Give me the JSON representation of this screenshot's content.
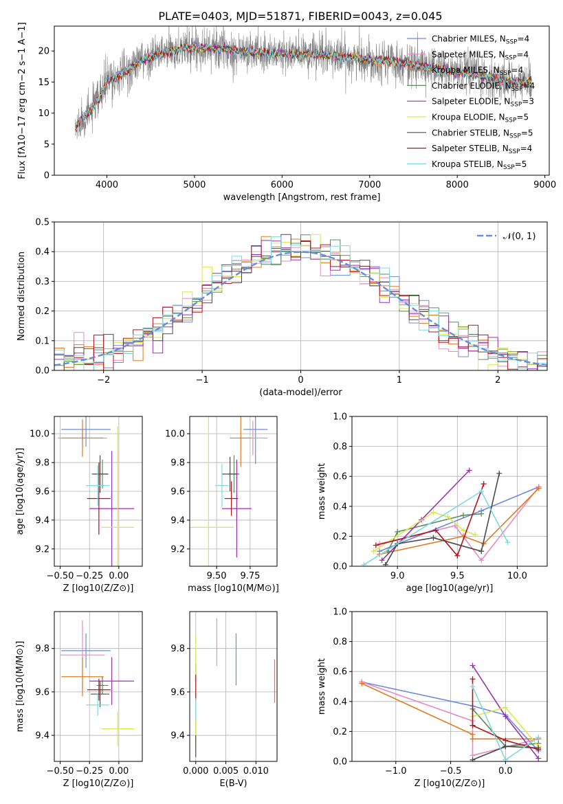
{
  "figure_title": "PLATE=0403, MJD=51871, FIBERID=0043, z=0.045",
  "colors": [
    "#6a8bdc",
    "#e78ac3",
    "#e07a1f",
    "#5b8a5b",
    "#9b2fae",
    "#d9e84a",
    "#4a4a4a",
    "#b3121b",
    "#7fd8de"
  ],
  "chart_data": [
    {
      "id": "spectrum",
      "type": "line",
      "xlabel": "wavelength [Angstrom, rest frame]",
      "ylabel_html": "Flux [f_λ 10^-17 erg cm^-2 s^-1 A^-1]",
      "ylabel": "Flux [fλ10−17 erg cm−2 s−1 A−1]",
      "xlim": [
        3400,
        9050
      ],
      "ylim": [
        0,
        24
      ],
      "xticks": [
        4000,
        5000,
        6000,
        7000,
        8000,
        9000
      ],
      "yticks": [
        0,
        5,
        10,
        15,
        20
      ],
      "grid": false,
      "legend_position": "upper-right",
      "legend": [
        {
          "label": "Chabrier MILES, N",
          "sub": "SSP",
          "suffix": "=4"
        },
        {
          "label": "Salpeter MILES, N",
          "sub": "SSP",
          "suffix": "=4"
        },
        {
          "label": "Kroupa MILES, N",
          "sub": "SSP",
          "suffix": "=4"
        },
        {
          "label": "Chabrier ELODIE, N",
          "sub": "SSP",
          "suffix": "=4"
        },
        {
          "label": "Salpeter ELODIE, N",
          "sub": "SSP",
          "suffix": "=3"
        },
        {
          "label": "Kroupa ELODIE, N",
          "sub": "SSP",
          "suffix": "=5"
        },
        {
          "label": "Chabrier STELIB, N",
          "sub": "SSP",
          "suffix": "=5"
        },
        {
          "label": "Salpeter STELIB, N",
          "sub": "SSP",
          "suffix": "=4"
        },
        {
          "label": "Kroupa STELIB, N",
          "sub": "SSP",
          "suffix": "=5"
        }
      ],
      "continuum": {
        "x": [
          3650,
          3700,
          3800,
          3900,
          4000,
          4100,
          4200,
          4300,
          4400,
          4500,
          4600,
          4700,
          4800,
          4900,
          5000,
          5100,
          5200,
          5300,
          5400,
          5500,
          5600,
          5700,
          5800,
          5900,
          6000,
          6100,
          6200,
          6300,
          6400,
          6500,
          6600,
          6700,
          6800,
          6900,
          7000,
          7100,
          7200,
          7300,
          7400,
          7500,
          7600,
          7700,
          7800,
          7900,
          8000,
          8100,
          8200,
          8300,
          8400,
          8500,
          8600,
          8700,
          8800
        ],
        "y": [
          7.5,
          9.0,
          10.0,
          12.0,
          15.0,
          15.8,
          16.5,
          17.5,
          18.5,
          19.0,
          19.5,
          19.8,
          20.2,
          20.5,
          20.6,
          20.5,
          20.5,
          20.3,
          20.2,
          20.0,
          19.8,
          19.8,
          19.7,
          19.6,
          19.5,
          19.5,
          19.4,
          19.4,
          19.4,
          19.3,
          19.2,
          19.0,
          18.9,
          18.8,
          18.7,
          18.5,
          18.4,
          18.2,
          18.0,
          17.7,
          17.5,
          17.3,
          17.0,
          16.8,
          16.6,
          16.4,
          16.2,
          15.9,
          15.6,
          15.3,
          15.1,
          14.9,
          15.0
        ]
      },
      "spectrum_range": [
        3640,
        8850
      ]
    },
    {
      "id": "residuals",
      "type": "histogram",
      "xlabel": "(data-model)/error",
      "ylabel": "Normed distribution",
      "xlim": [
        -2.5,
        2.5
      ],
      "ylim": [
        0,
        0.5
      ],
      "xticks": [
        -2,
        -1,
        0,
        1,
        2
      ],
      "xtick_labels": [
        "−2",
        "−1",
        "0",
        "1",
        "2"
      ],
      "yticks": [
        0,
        0.1,
        0.2,
        0.3,
        0.4,
        0.5
      ],
      "ytick_labels": [
        "0.0",
        "0.1",
        "0.2",
        "0.3",
        "0.4",
        "0.5"
      ],
      "grid": true,
      "legend_position": "upper-right",
      "legend_label": "𝒩(0, 1)",
      "bin_width": 0.1,
      "reference_curve": "normal(0,1) pdf"
    },
    {
      "id": "age_vs_Z",
      "type": "scatter-errorbar",
      "xlabel": "Z [log10(Z/Z⊙)]",
      "ylabel": "age  [log10(age/yr)]",
      "xlim": [
        -0.55,
        0.2
      ],
      "ylim": [
        9.08,
        10.12
      ],
      "xticks": [
        -0.5,
        -0.25,
        0.0
      ],
      "xtick_labels": [
        "−0.50",
        "−0.25",
        "0.00"
      ],
      "yticks": [
        9.2,
        9.4,
        9.6,
        9.8,
        10.0
      ],
      "ytick_labels": [
        "9.2",
        "9.4",
        "9.6",
        "9.8",
        "10.0"
      ],
      "grid": true,
      "points": [
        {
          "x": -0.28,
          "xerr": 0.21,
          "y": 10.03,
          "yerr": 0.12
        },
        {
          "x": -0.31,
          "xerr": 0.21,
          "y": 9.97,
          "yerr": 0.06
        },
        {
          "x": -0.31,
          "xerr": 0.18,
          "y": 9.97,
          "yerr": 0.13
        },
        {
          "x": -0.14,
          "xerr": 0.05,
          "y": 9.72,
          "yerr": 0.1
        },
        {
          "x": -0.06,
          "xerr": 0.19,
          "y": 9.48,
          "yerr": 0.4
        },
        {
          "x": -0.01,
          "xerr": 0.14,
          "y": 9.35,
          "yerr": 0.7
        },
        {
          "x": -0.16,
          "xerr": 0.07,
          "y": 9.72,
          "yerr": 0.13
        },
        {
          "x": -0.17,
          "xerr": 0.1,
          "y": 9.55,
          "yerr": 0.25
        },
        {
          "x": -0.18,
          "xerr": 0.1,
          "y": 9.64,
          "yerr": 0.14
        }
      ]
    },
    {
      "id": "age_vs_mass",
      "type": "scatter-errorbar",
      "xlabel": "mass [log10(M/M⊙)]",
      "ylabel": "",
      "xlim": [
        9.3,
        9.95
      ],
      "ylim": [
        9.08,
        10.12
      ],
      "xticks": [
        9.5,
        9.75
      ],
      "xtick_labels": [
        "9.50",
        "9.75"
      ],
      "yticks": [
        9.2,
        9.4,
        9.6,
        9.8,
        10.0
      ],
      "ytick_labels": [
        "9.2",
        "9.4",
        "9.6",
        "9.8",
        "10.0"
      ],
      "grid": true,
      "points": [
        {
          "x": 9.79,
          "xerr": 0.09,
          "y": 10.03,
          "yerr": 0.24
        },
        {
          "x": 9.77,
          "xerr": 0.11,
          "y": 9.97,
          "yerr": 0.12
        },
        {
          "x": 9.68,
          "xerr": 0.08,
          "y": 9.97,
          "yerr": 0.2
        },
        {
          "x": 9.63,
          "xerr": 0.04,
          "y": 9.72,
          "yerr": 0.13
        },
        {
          "x": 9.65,
          "xerr": 0.11,
          "y": 9.48,
          "yerr": 0.34
        },
        {
          "x": 9.44,
          "xerr": 0.19,
          "y": 9.35,
          "yerr": 0.87
        },
        {
          "x": 9.6,
          "xerr": 0.06,
          "y": 9.72,
          "yerr": 0.12
        },
        {
          "x": 9.61,
          "xerr": 0.05,
          "y": 9.55,
          "yerr": 0.12
        },
        {
          "x": 9.54,
          "xerr": 0.05,
          "y": 9.64,
          "yerr": 0.15
        }
      ]
    },
    {
      "id": "weight_vs_age",
      "type": "line",
      "xlabel": "age  [log10(age/yr)]",
      "ylabel": "mass weight",
      "xlim": [
        8.62,
        10.25
      ],
      "ylim": [
        0,
        1.0
      ],
      "xticks": [
        9.0,
        9.5,
        10.0
      ],
      "xtick_labels": [
        "9.0",
        "9.5",
        "10.0"
      ],
      "yticks": [
        0,
        0.2,
        0.4,
        0.6,
        0.8,
        1.0
      ],
      "ytick_labels": [
        "0.0",
        "0.2",
        "0.4",
        "0.6",
        "0.8",
        "1.0"
      ],
      "grid": true,
      "series": [
        {
          "x": [
            8.85,
            9.7,
            10.18
          ],
          "y": [
            0.1,
            0.37,
            0.53
          ]
        },
        {
          "x": [
            8.85,
            9.48,
            9.7,
            10.18
          ],
          "y": [
            0.15,
            0.27,
            0.04,
            0.53
          ]
        },
        {
          "x": [
            8.85,
            9.55,
            9.72,
            10.18
          ],
          "y": [
            0.08,
            0.2,
            0.15,
            0.52
          ]
        },
        {
          "x": [
            8.92,
            9.0,
            9.55,
            9.7
          ],
          "y": [
            0.1,
            0.23,
            0.34,
            0.35
          ]
        },
        {
          "x": [
            8.87,
            9.2,
            9.6
          ],
          "y": [
            0.04,
            0.31,
            0.64
          ]
        },
        {
          "x": [
            8.8,
            9.3,
            9.42,
            9.55,
            9.65
          ],
          "y": [
            0.1,
            0.36,
            0.33,
            0.24,
            0.21
          ]
        },
        {
          "x": [
            8.9,
            9.0,
            9.3,
            9.7,
            9.85
          ],
          "y": [
            0.01,
            0.15,
            0.19,
            0.1,
            0.62
          ]
        },
        {
          "x": [
            8.82,
            9.32,
            9.5,
            9.72
          ],
          "y": [
            0.14,
            0.24,
            0.07,
            0.55
          ]
        },
        {
          "x": [
            8.72,
            9.7,
            9.92
          ],
          "y": [
            0.01,
            0.5,
            0.16
          ]
        }
      ]
    },
    {
      "id": "mass_vs_Z",
      "type": "scatter-errorbar",
      "xlabel": "Z [log10(Z/Z⊙)]",
      "ylabel": "mass [log10(M/M⊙)]",
      "xlim": [
        -0.55,
        0.2
      ],
      "ylim": [
        9.28,
        9.97
      ],
      "xticks": [
        -0.5,
        -0.25,
        0.0
      ],
      "xtick_labels": [
        "−0.50",
        "−0.25",
        "0.00"
      ],
      "yticks": [
        9.4,
        9.6,
        9.8
      ],
      "ytick_labels": [
        "9.4",
        "9.6",
        "9.8"
      ],
      "grid": true,
      "points": [
        {
          "x": -0.28,
          "xerr": 0.21,
          "y": 9.79,
          "yerr": 0.08
        },
        {
          "x": -0.31,
          "xerr": 0.19,
          "y": 9.77,
          "yerr": 0.16
        },
        {
          "x": -0.31,
          "xerr": 0.18,
          "y": 9.67,
          "yerr": 0.09
        },
        {
          "x": -0.14,
          "xerr": 0.05,
          "y": 9.63,
          "yerr": 0.04
        },
        {
          "x": -0.06,
          "xerr": 0.19,
          "y": 9.65,
          "yerr": 0.11
        },
        {
          "x": -0.01,
          "xerr": 0.14,
          "y": 9.43,
          "yerr": 0.08
        },
        {
          "x": -0.16,
          "xerr": 0.08,
          "y": 9.59,
          "yerr": 0.06
        },
        {
          "x": -0.17,
          "xerr": 0.1,
          "y": 9.61,
          "yerr": 0.05
        },
        {
          "x": -0.18,
          "xerr": 0.1,
          "y": 9.54,
          "yerr": 0.05
        }
      ]
    },
    {
      "id": "mass_vs_EBV",
      "type": "scatter-errorbar",
      "xlabel": "E(B-V)",
      "ylabel": "",
      "xlim": [
        -0.001,
        0.0135
      ],
      "ylim": [
        9.28,
        9.97
      ],
      "xticks": [
        0.0,
        0.005,
        0.01
      ],
      "xtick_labels": [
        "0.000",
        "0.005",
        "0.010"
      ],
      "yticks": [
        9.4,
        9.6,
        9.8
      ],
      "ytick_labels": [
        "9.4",
        "9.6",
        "9.8"
      ],
      "grid": true,
      "points": [
        {
          "x": 0.0067,
          "y": 9.75,
          "yerr": 0.12
        },
        {
          "x": 0.0035,
          "y": 9.83,
          "yerr": 0.11
        },
        {
          "x": 0.0131,
          "y": 9.65,
          "yerr": 0.1
        },
        {
          "x": 0.0,
          "y": 9.5,
          "yerr": 0.12
        },
        {
          "x": 0.0,
          "y": 9.68,
          "yerr": 0.05
        },
        {
          "x": 0.0,
          "y": 9.6,
          "yerr": 0.26
        },
        {
          "x": 0.0,
          "y": 9.35,
          "yerr": 0.05
        },
        {
          "x": 0.0,
          "y": 9.62,
          "yerr": 0.06
        },
        {
          "x": 0.0,
          "y": 9.52,
          "yerr": 0.05
        }
      ]
    },
    {
      "id": "weight_vs_Z",
      "type": "line",
      "xlabel": "Z [log10(Z/Z⊙)]",
      "ylabel": "mass weight",
      "xlim": [
        -1.4,
        0.38
      ],
      "ylim": [
        0,
        1.0
      ],
      "xticks": [
        -1.0,
        -0.5,
        0.0
      ],
      "xtick_labels": [
        "−1.0",
        "−0.5",
        "0.0"
      ],
      "yticks": [
        0,
        0.2,
        0.4,
        0.6,
        0.8,
        1.0
      ],
      "ytick_labels": [
        "0.0",
        "0.2",
        "0.4",
        "0.6",
        "0.8",
        "1.0"
      ],
      "grid": true,
      "series": [
        {
          "x": [
            -1.31,
            -0.3,
            0.0,
            0.3
          ],
          "y": [
            0.53,
            0.37,
            0.31,
            0.07
          ]
        },
        {
          "x": [
            -1.31,
            -0.3,
            -0.3,
            0.3
          ],
          "y": [
            0.53,
            0.27,
            0.04,
            0.15
          ]
        },
        {
          "x": [
            -1.31,
            -0.3,
            -0.3,
            0.3
          ],
          "y": [
            0.52,
            0.18,
            0.15,
            0.15
          ]
        },
        {
          "x": [
            -0.3,
            0.0,
            0.3
          ],
          "y": [
            0.35,
            0.1,
            0.12
          ]
        },
        {
          "x": [
            -0.3,
            0.0,
            0.3
          ],
          "y": [
            0.64,
            0.3,
            0.02
          ]
        },
        {
          "x": [
            -0.3,
            0.0,
            0.3
          ],
          "y": [
            0.3,
            0.36,
            0.1
          ]
        },
        {
          "x": [
            -0.3,
            0.0,
            0.3
          ],
          "y": [
            0.01,
            0.1,
            0.09
          ]
        },
        {
          "x": [
            -0.3,
            -0.3,
            0.0,
            0.3
          ],
          "y": [
            0.55,
            0.24,
            0.14,
            0.08
          ]
        },
        {
          "x": [
            -0.3,
            0.0,
            0.3
          ],
          "y": [
            0.5,
            0.01,
            0.16
          ]
        }
      ]
    }
  ]
}
